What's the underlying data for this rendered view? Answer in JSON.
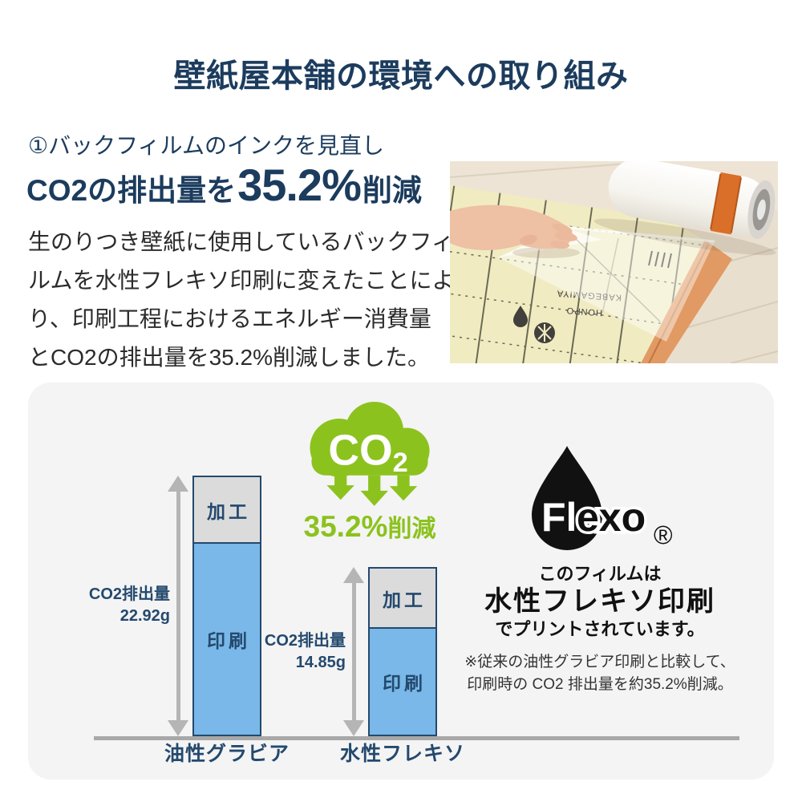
{
  "page": {
    "title": "壁紙屋本舗の環境への取り組み",
    "accent_navy": "#1c3c5e",
    "accent_green": "#8cc21e"
  },
  "intro": {
    "heading": "①バックフィルムのインクを見直し",
    "stat_prefix": "CO2の排出量を",
    "stat_value": "35.2%",
    "stat_suffix": "削減",
    "body": "生のりつき壁紙に使用しているバックフィ\nルムを水性フレキソ印刷に変えたことによ\nり、印刷工程におけるエネルギー消費量\nとCO2の排出量を35.2%削減しました。"
  },
  "photo": {
    "print_line1": "KABEGAMIYA",
    "print_line2": "HONPO"
  },
  "chart_data": {
    "type": "bar",
    "stacked": true,
    "categories": [
      "油性グラビア",
      "水性フレキソ"
    ],
    "series": [
      {
        "name": "印刷",
        "values": [
          18.62,
          10.65
        ],
        "color": "#79b8e8"
      },
      {
        "name": "加工",
        "values": [
          4.3,
          4.2
        ],
        "color": "#dbdbdb"
      }
    ],
    "totals": [
      22.92,
      14.85
    ],
    "total_labels": [
      "CO2排出量\n22.92g",
      "CO2排出量\n14.85g"
    ],
    "unit": "g",
    "ylim": [
      0,
      24
    ],
    "legend": "none",
    "grid": false
  },
  "co2_badge": {
    "cloud_text": "CO",
    "cloud_sub": "2",
    "reduction_value": "35.2%",
    "reduction_suffix": "削減"
  },
  "flexo": {
    "logo_fl": "Fl",
    "logo_exo": "exo",
    "registered": "®",
    "line1": "このフィルムは",
    "line2": "水性フレキソ印刷",
    "line3": "でプリントされています。",
    "note1": "※従来の油性グラビア印刷と比較して、",
    "note2": "印刷時の CO2 排出量を約35.2%削減。"
  }
}
